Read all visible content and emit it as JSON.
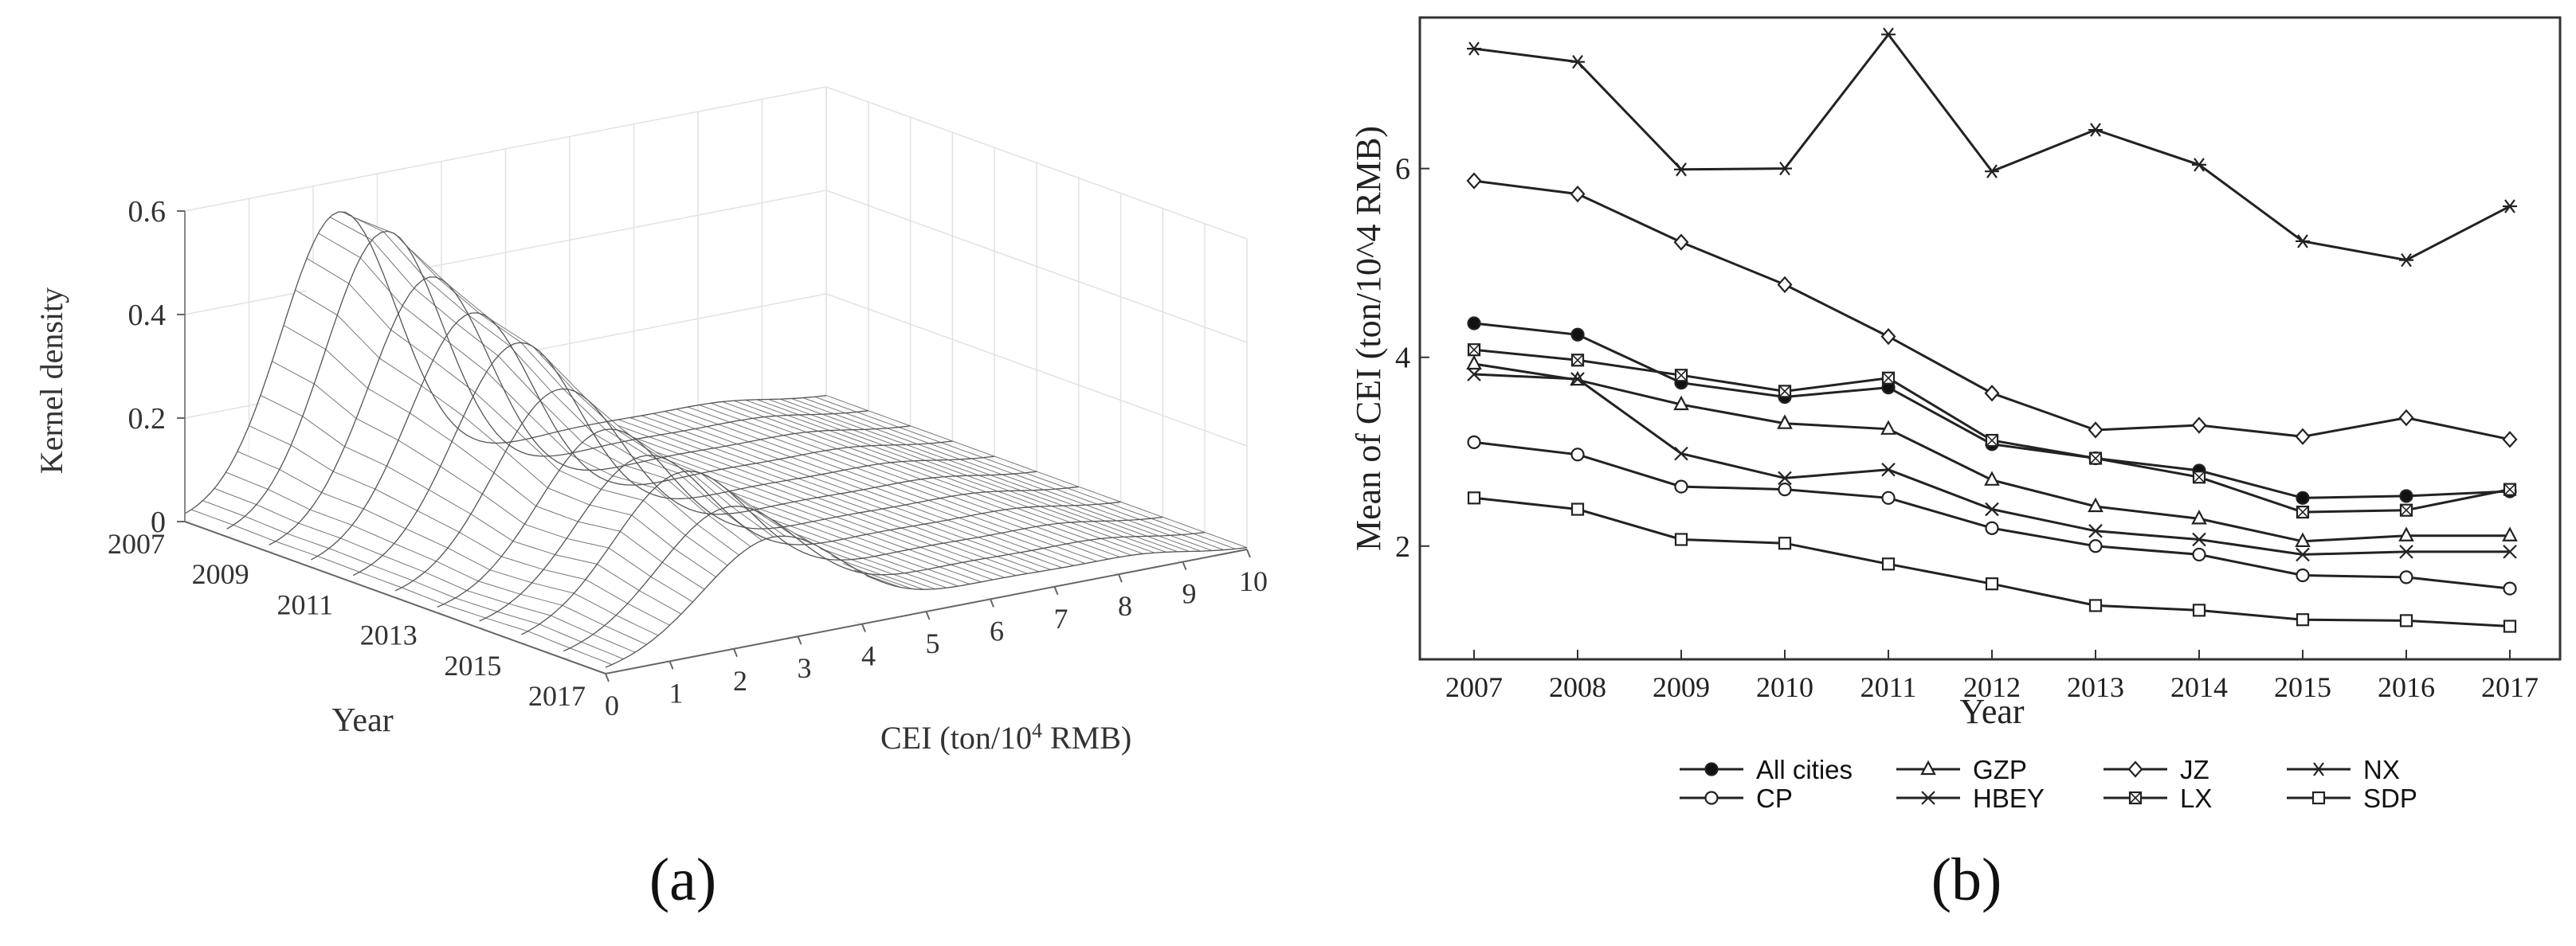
{
  "panels": {
    "a_label": "(a)",
    "b_label": "(b)"
  },
  "chart_data": [
    {
      "id": "a",
      "type": "surface",
      "title": "",
      "zlabel": "Kernel density",
      "ylabel": "Year",
      "xlabel_main": "CEI (ton/10",
      "xlabel_sup": "4",
      "xlabel_tail": " RMB)",
      "z_ticks": [
        "0",
        "0.2",
        "0.4",
        "0.6"
      ],
      "year_ticks": [
        "2007",
        "2009",
        "2011",
        "2013",
        "2015",
        "2017"
      ],
      "cei_ticks": [
        "0",
        "1",
        "2",
        "3",
        "4",
        "5",
        "6",
        "7",
        "8",
        "9",
        "10"
      ],
      "zlim": [
        0,
        0.6
      ],
      "xlim": [
        0,
        10
      ],
      "years": [
        2007,
        2008,
        2009,
        2010,
        2011,
        2012,
        2013,
        2014,
        2015,
        2016,
        2017
      ],
      "peak_cei": [
        2.4,
        2.45,
        2.5,
        2.5,
        2.55,
        2.55,
        2.6,
        2.55,
        2.5,
        2.55,
        2.6
      ],
      "peak_density": [
        0.54,
        0.53,
        0.47,
        0.43,
        0.4,
        0.34,
        0.29,
        0.27,
        0.27,
        0.23,
        0.2
      ]
    },
    {
      "id": "b",
      "type": "line",
      "ylabel": "Mean of CEI (ton/10^4 RMB)",
      "xlabel": "Year",
      "categories": [
        "2007",
        "2008",
        "2009",
        "2010",
        "2011",
        "2012",
        "2013",
        "2014",
        "2015",
        "2016",
        "2017"
      ],
      "ylim": [
        0.8,
        7.6
      ],
      "y_ticks": [
        "2",
        "4",
        "6"
      ],
      "series": [
        {
          "name": "All cities",
          "marker": "dot",
          "values": [
            4.36,
            4.24,
            3.73,
            3.58,
            3.68,
            3.08,
            2.93,
            2.8,
            2.51,
            2.53,
            2.58
          ]
        },
        {
          "name": "GZP",
          "marker": "triangle",
          "values": [
            3.93,
            3.76,
            3.5,
            3.3,
            3.24,
            2.7,
            2.42,
            2.29,
            2.05,
            2.11,
            2.11
          ]
        },
        {
          "name": "JZ",
          "marker": "diamond",
          "values": [
            5.87,
            5.73,
            5.22,
            4.77,
            4.22,
            3.62,
            3.23,
            3.28,
            3.16,
            3.36,
            3.13
          ]
        },
        {
          "name": "NX",
          "marker": "asterisk",
          "values": [
            7.27,
            7.13,
            5.99,
            6.0,
            7.42,
            5.97,
            6.41,
            6.04,
            5.23,
            5.03,
            5.6
          ]
        },
        {
          "name": "CP",
          "marker": "circle",
          "values": [
            3.1,
            2.97,
            2.63,
            2.6,
            2.51,
            2.19,
            2.0,
            1.91,
            1.69,
            1.67,
            1.55
          ]
        },
        {
          "name": "HBEY",
          "marker": "x",
          "values": [
            3.82,
            3.77,
            2.98,
            2.72,
            2.81,
            2.39,
            2.16,
            2.07,
            1.91,
            1.94,
            1.94
          ]
        },
        {
          "name": "LX",
          "marker": "boxedx",
          "values": [
            4.08,
            3.97,
            3.81,
            3.64,
            3.78,
            3.12,
            2.93,
            2.73,
            2.36,
            2.38,
            2.6
          ]
        },
        {
          "name": "SDP",
          "marker": "square",
          "values": [
            2.51,
            2.39,
            2.07,
            2.03,
            1.81,
            1.6,
            1.37,
            1.32,
            1.22,
            1.21,
            1.15
          ]
        }
      ]
    }
  ]
}
